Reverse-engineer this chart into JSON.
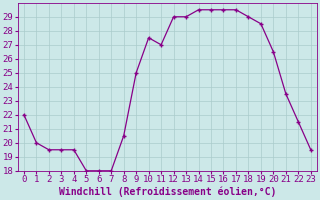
{
  "x": [
    0,
    1,
    2,
    3,
    4,
    5,
    6,
    7,
    8,
    9,
    10,
    11,
    12,
    13,
    14,
    15,
    16,
    17,
    18,
    19,
    20,
    21,
    22,
    23
  ],
  "y": [
    22,
    20,
    19.5,
    19.5,
    19.5,
    18,
    18,
    18,
    20.5,
    25,
    27.5,
    27,
    29,
    29,
    29.5,
    29.5,
    29.5,
    29.5,
    29,
    28.5,
    26.5,
    23.5,
    21.5,
    19.5
  ],
  "line_color": "#880088",
  "marker": "+",
  "bg_color": "#cce8e8",
  "grid_color": "#aacccc",
  "xlabel": "Windchill (Refroidissement éolien,°C)",
  "xlabel_color": "#880088",
  "ylim": [
    18,
    30
  ],
  "yticks": [
    18,
    19,
    20,
    21,
    22,
    23,
    24,
    25,
    26,
    27,
    28,
    29
  ],
  "xticks": [
    0,
    1,
    2,
    3,
    4,
    5,
    6,
    7,
    8,
    9,
    10,
    11,
    12,
    13,
    14,
    15,
    16,
    17,
    18,
    19,
    20,
    21,
    22,
    23
  ],
  "tick_color": "#880088",
  "font_size": 6.5,
  "label_font_size": 7.0
}
